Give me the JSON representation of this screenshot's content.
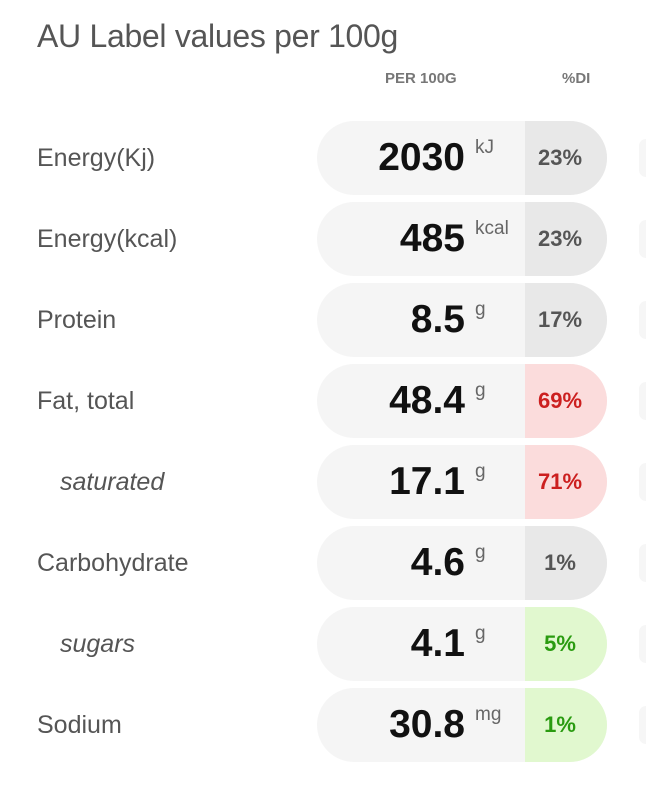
{
  "title": "AU Label values per 100g",
  "columns": {
    "per": "PER 100G",
    "di": "%DI"
  },
  "rows": [
    {
      "label": "Energy(Kj)",
      "value": "2030",
      "unit": "kJ",
      "di": "23%",
      "level": "neutral",
      "indent": false
    },
    {
      "label": "Energy(kcal)",
      "value": "485",
      "unit": "kcal",
      "di": "23%",
      "level": "neutral",
      "indent": false
    },
    {
      "label": "Protein",
      "value": "8.5",
      "unit": "g",
      "di": "17%",
      "level": "neutral",
      "indent": false
    },
    {
      "label": "Fat, total",
      "value": "48.4",
      "unit": "g",
      "di": "69%",
      "level": "high",
      "indent": false
    },
    {
      "label": "saturated",
      "value": "17.1",
      "unit": "g",
      "di": "71%",
      "level": "high",
      "indent": true
    },
    {
      "label": "Carbohydrate",
      "value": "4.6",
      "unit": "g",
      "di": "1%",
      "level": "neutral",
      "indent": false
    },
    {
      "label": "sugars",
      "value": "4.1",
      "unit": "g",
      "di": "5%",
      "level": "low",
      "indent": true
    },
    {
      "label": "Sodium",
      "value": "30.8",
      "unit": "mg",
      "di": "1%",
      "level": "low",
      "indent": false
    }
  ],
  "colors": {
    "high_bg": "#fbdcdc",
    "high_text": "#cc1f1f",
    "low_bg": "#e1f8cf",
    "low_text": "#2a9b10",
    "neutral_bg": "#e8e8e8"
  }
}
